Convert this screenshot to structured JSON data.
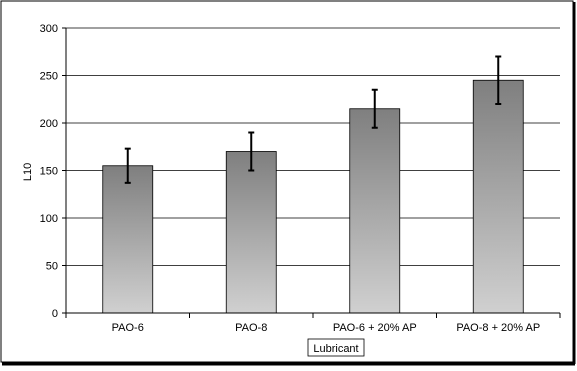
{
  "chart_data": {
    "type": "bar",
    "categories": [
      "PAO-6",
      "PAO-8",
      "PAO-6 + 20% AP",
      "PAO-8 + 20% AP"
    ],
    "values": [
      155,
      170,
      215,
      245
    ],
    "error_bars": [
      {
        "low": 137,
        "high": 173
      },
      {
        "low": 150,
        "high": 190
      },
      {
        "low": 195,
        "high": 235
      },
      {
        "low": 220,
        "high": 270
      }
    ],
    "title": "",
    "xlabel": "Lubricant",
    "ylabel": "L10",
    "ylim": [
      0,
      300
    ],
    "yticks": [
      0,
      50,
      100,
      150,
      200,
      250,
      300
    ],
    "grid": true,
    "legend": "none",
    "bar_color_top": "#7f7f7f",
    "bar_color_bottom": "#d0d0d0"
  }
}
